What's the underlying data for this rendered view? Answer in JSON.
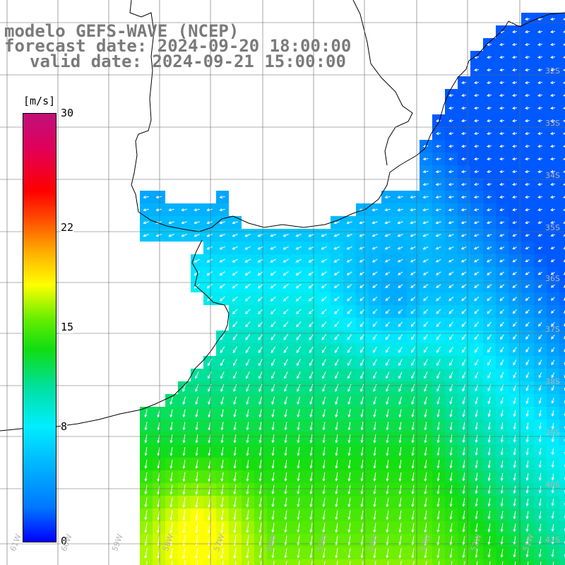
{
  "title": {
    "line1": "modelo GEFS-WAVE (NCEP)",
    "line2": "forecast date: 2024-09-20 18:00:00",
    "line3": "valid date: 2024-09-21 15:00:00"
  },
  "legend": {
    "unit": "[m/s]",
    "ticks": [
      {
        "value": 30,
        "label": "30"
      },
      {
        "value": 22,
        "label": "22"
      },
      {
        "value": 15,
        "label": "15"
      },
      {
        "value": 8,
        "label": "8"
      },
      {
        "value": 0,
        "label": "0"
      }
    ],
    "range": [
      0,
      30
    ]
  },
  "grid": {
    "lat_labels": [
      "32S",
      "33S",
      "34S",
      "35S",
      "36S",
      "37S",
      "38S",
      "39S",
      "40S",
      "41S"
    ],
    "lon_labels": [
      "61W",
      "60W",
      "59W",
      "58W",
      "57W",
      "56W",
      "55W",
      "54W",
      "53W",
      "52W",
      "51W"
    ]
  },
  "colors": {
    "title": "#7a7a7a",
    "coast": "#000000",
    "grid": "#666666",
    "arrows": "#ffffff",
    "land": "#ffffff"
  }
}
